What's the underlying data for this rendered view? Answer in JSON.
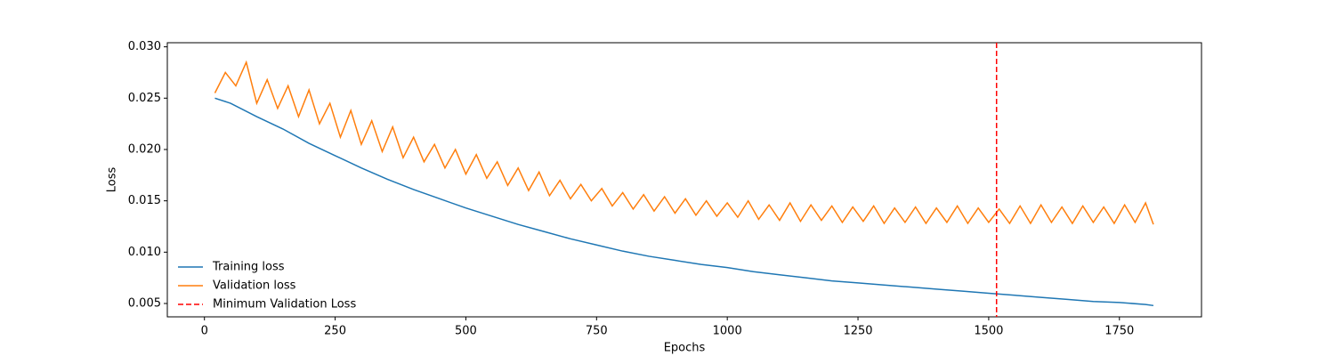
{
  "chart_data": {
    "type": "line",
    "xlabel": "Epochs",
    "ylabel": "Loss",
    "xlim": [
      -71,
      1907
    ],
    "ylim": [
      0.0037,
      0.0304
    ],
    "xticks": [
      0,
      250,
      500,
      750,
      1000,
      1250,
      1500,
      1750
    ],
    "yticks": [
      0.005,
      {
        "value": 0.01,
        "label": "0.010"
      },
      0.015,
      {
        "value": 0.02,
        "label": "0.020"
      },
      0.025,
      {
        "value": 0.03,
        "label": "0.030"
      }
    ],
    "legend": "lower left",
    "series": [
      {
        "name": "Training loss",
        "color": "#1f77b4",
        "x": [
          20,
          50,
          100,
          150,
          200,
          250,
          300,
          350,
          400,
          450,
          500,
          550,
          600,
          650,
          700,
          750,
          800,
          850,
          900,
          950,
          1000,
          1050,
          1100,
          1150,
          1200,
          1250,
          1300,
          1350,
          1400,
          1450,
          1500,
          1550,
          1600,
          1650,
          1700,
          1750,
          1800,
          1815
        ],
        "values": [
          0.025,
          0.0245,
          0.0232,
          0.022,
          0.0206,
          0.0194,
          0.0182,
          0.0171,
          0.0161,
          0.0152,
          0.0143,
          0.0135,
          0.0127,
          0.012,
          0.0113,
          0.0107,
          0.0101,
          0.0096,
          0.0092,
          0.0088,
          0.0085,
          0.0081,
          0.0078,
          0.0075,
          0.0072,
          0.007,
          0.0068,
          0.0066,
          0.0064,
          0.0062,
          0.006,
          0.0058,
          0.0056,
          0.0054,
          0.0052,
          0.0051,
          0.0049,
          0.0048
        ]
      },
      {
        "name": "Validation loss",
        "color": "#ff7f0e",
        "x": [
          20,
          40,
          60,
          80,
          100,
          120,
          140,
          160,
          180,
          200,
          220,
          240,
          260,
          280,
          300,
          320,
          340,
          360,
          380,
          400,
          420,
          440,
          460,
          480,
          500,
          520,
          540,
          560,
          580,
          600,
          620,
          640,
          660,
          680,
          700,
          720,
          740,
          760,
          780,
          800,
          820,
          840,
          860,
          880,
          900,
          920,
          940,
          960,
          980,
          1000,
          1020,
          1040,
          1060,
          1080,
          1100,
          1120,
          1140,
          1160,
          1180,
          1200,
          1220,
          1240,
          1260,
          1280,
          1300,
          1320,
          1340,
          1360,
          1380,
          1400,
          1420,
          1440,
          1460,
          1480,
          1500,
          1520,
          1540,
          1560,
          1580,
          1600,
          1620,
          1640,
          1660,
          1680,
          1700,
          1720,
          1740,
          1760,
          1780,
          1800,
          1815
        ],
        "values": [
          0.0255,
          0.0275,
          0.0262,
          0.0285,
          0.0245,
          0.0268,
          0.024,
          0.0262,
          0.0232,
          0.0258,
          0.0225,
          0.0245,
          0.0212,
          0.0238,
          0.0205,
          0.0228,
          0.0198,
          0.0222,
          0.0192,
          0.0212,
          0.0188,
          0.0205,
          0.0182,
          0.02,
          0.0176,
          0.0195,
          0.0172,
          0.0188,
          0.0165,
          0.0182,
          0.016,
          0.0178,
          0.0155,
          0.017,
          0.0152,
          0.0166,
          0.015,
          0.0162,
          0.0145,
          0.0158,
          0.0142,
          0.0156,
          0.014,
          0.0154,
          0.0138,
          0.0152,
          0.0136,
          0.015,
          0.0135,
          0.0148,
          0.0134,
          0.015,
          0.0132,
          0.0146,
          0.0131,
          0.0148,
          0.013,
          0.0146,
          0.0131,
          0.0145,
          0.0129,
          0.0144,
          0.013,
          0.0145,
          0.0128,
          0.0143,
          0.0129,
          0.0144,
          0.0128,
          0.0143,
          0.0129,
          0.0145,
          0.0128,
          0.0143,
          0.0129,
          0.0142,
          0.0128,
          0.0145,
          0.0128,
          0.0146,
          0.0129,
          0.0144,
          0.0128,
          0.0145,
          0.0129,
          0.0144,
          0.0128,
          0.0146,
          0.0129,
          0.0148,
          0.0127
        ]
      }
    ],
    "vline": {
      "x": 1515,
      "label": "Minimum Validation Loss",
      "color": "#ff0000"
    }
  }
}
